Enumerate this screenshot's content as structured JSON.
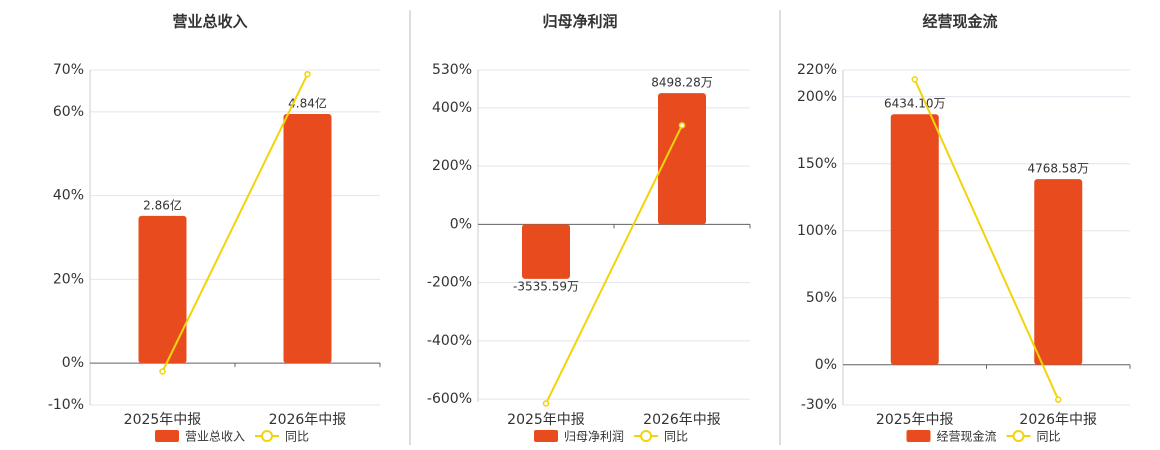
{
  "chart_data": [
    {
      "type": "bar",
      "title": "营业总收入",
      "categories": [
        "2025年中报",
        "2026年中报"
      ],
      "series": [
        {
          "name": "营业总收入",
          "color": "#e84c1e",
          "values": [
            2.86,
            4.84
          ],
          "value_labels": [
            "2.86亿",
            "4.84亿"
          ]
        },
        {
          "name": "同比",
          "type": "line",
          "color": "#f2d40a",
          "values": [
            -2,
            69
          ]
        }
      ],
      "ylim": [
        -10,
        70
      ],
      "yticks": [
        {
          "value": -10,
          "label": "-10%"
        },
        {
          "value": 0,
          "label": "0%"
        },
        {
          "value": 20,
          "label": "20%"
        },
        {
          "value": 40,
          "label": "40%"
        },
        {
          "value": 60,
          "label": "60%"
        },
        {
          "value": 70,
          "label": "70%"
        }
      ],
      "grid": true
    },
    {
      "type": "bar",
      "title": "归母净利润",
      "categories": [
        "2025年中报",
        "2026年中报"
      ],
      "series": [
        {
          "name": "归母净利润",
          "color": "#e84c1e",
          "values": [
            -3535.59,
            8498.28
          ],
          "value_labels": [
            "-3535.59万",
            "8498.28万"
          ]
        },
        {
          "name": "同比",
          "type": "line",
          "color": "#f2d40a",
          "values": [
            -615,
            340
          ]
        }
      ],
      "ylim": [
        -610,
        530
      ],
      "yticks": [
        {
          "value": -600,
          "label": "-600%"
        },
        {
          "value": -400,
          "label": "-400%"
        },
        {
          "value": -200,
          "label": "-200%"
        },
        {
          "value": 0,
          "label": "0%"
        },
        {
          "value": 200,
          "label": "200%"
        },
        {
          "value": 400,
          "label": "400%"
        },
        {
          "value": 530,
          "label": "530%"
        }
      ],
      "grid": true
    },
    {
      "type": "bar",
      "title": "经营现金流",
      "categories": [
        "2025年中报",
        "2026年中报"
      ],
      "series": [
        {
          "name": "经营现金流",
          "color": "#e84c1e",
          "values": [
            6434.1,
            4768.58
          ],
          "value_labels": [
            "6434.10万",
            "4768.58万"
          ]
        },
        {
          "name": "同比",
          "type": "line",
          "color": "#f2d40a",
          "values": [
            213,
            -26
          ]
        }
      ],
      "ylim": [
        -30,
        220
      ],
      "yticks": [
        {
          "value": -30,
          "label": "-30%"
        },
        {
          "value": 0,
          "label": "0%"
        },
        {
          "value": 50,
          "label": "50%"
        },
        {
          "value": 100,
          "label": "100%"
        },
        {
          "value": 150,
          "label": "150%"
        },
        {
          "value": 200,
          "label": "200%"
        },
        {
          "value": 220,
          "label": "220%"
        }
      ],
      "grid": true
    }
  ]
}
